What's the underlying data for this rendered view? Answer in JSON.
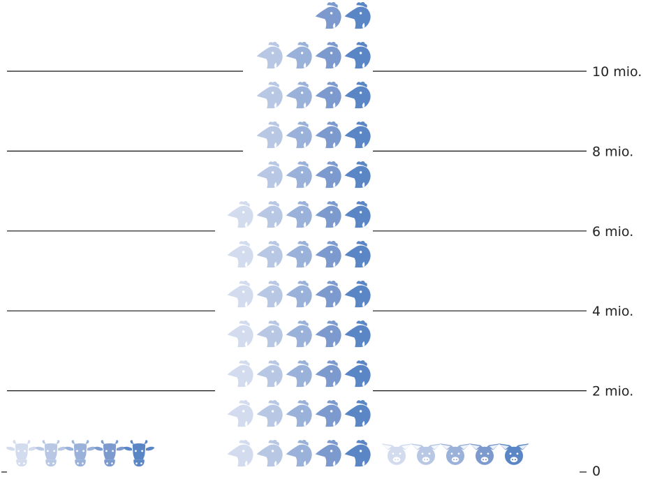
{
  "chart_data": {
    "type": "bar",
    "subtype": "pictograph",
    "categories": [
      "Cattle",
      "Chickens",
      "Pigs"
    ],
    "icons": [
      "cow-icon",
      "chicken-icon",
      "pig-icon"
    ],
    "values": [
      1.1,
      11.5,
      1.1
    ],
    "unit": "mio.",
    "ylim": [
      0,
      11.8
    ],
    "yticks": [
      {
        "value": 0,
        "label": "0"
      },
      {
        "value": 2,
        "label": "2 mio."
      },
      {
        "value": 4,
        "label": "4 mio."
      },
      {
        "value": 6,
        "label": "6 mio."
      },
      {
        "value": 8,
        "label": "8 mio."
      },
      {
        "value": 10,
        "label": "10 mio."
      }
    ],
    "grid": true,
    "colors": [
      "#d3dcee",
      "#b7c7e4",
      "#9ab1d9",
      "#7d9acf",
      "#5b86c6"
    ]
  }
}
